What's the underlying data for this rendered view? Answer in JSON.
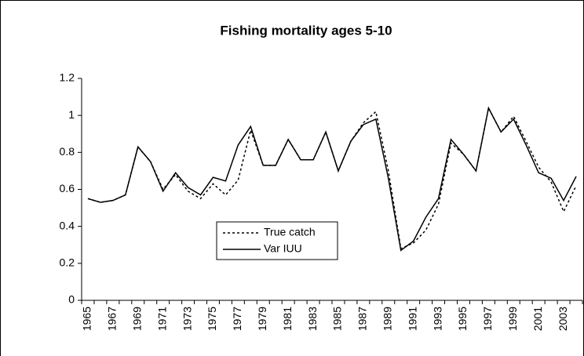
{
  "chart_data": {
    "type": "line",
    "title": "Fishing mortality ages 5-10",
    "categories": [
      "1965",
      null,
      "1967",
      null,
      "1969",
      null,
      "1971",
      null,
      "1973",
      null,
      "1975",
      null,
      "1977",
      null,
      "1979",
      null,
      "1981",
      null,
      "1983",
      null,
      "1985",
      null,
      "1987",
      null,
      "1989",
      null,
      "1991",
      null,
      "1993",
      null,
      "1995",
      null,
      "1997",
      null,
      "1999",
      null,
      "2001",
      null,
      "2003",
      null
    ],
    "series": [
      {
        "name": "True catch",
        "color": "#000000",
        "style": "dashed",
        "values": [
          0.55,
          0.53,
          0.54,
          0.57,
          0.83,
          0.75,
          0.6,
          0.68,
          0.59,
          0.55,
          0.63,
          0.57,
          0.65,
          0.92,
          0.73,
          0.73,
          0.87,
          0.76,
          0.76,
          0.91,
          0.7,
          0.86,
          0.96,
          1.02,
          0.7,
          0.28,
          0.31,
          0.38,
          0.52,
          0.85,
          0.79,
          0.7,
          1.04,
          0.91,
          0.995,
          0.86,
          0.72,
          0.64,
          0.48,
          0.62
        ]
      },
      {
        "name": "Var IUU",
        "color": "#000000",
        "style": "solid",
        "values": [
          0.55,
          0.53,
          0.54,
          0.57,
          0.83,
          0.75,
          0.59,
          0.69,
          0.61,
          0.57,
          0.665,
          0.645,
          0.84,
          0.94,
          0.73,
          0.73,
          0.87,
          0.76,
          0.76,
          0.91,
          0.7,
          0.86,
          0.95,
          0.98,
          0.66,
          0.27,
          0.32,
          0.45,
          0.55,
          0.87,
          0.79,
          0.7,
          1.04,
          0.91,
          0.98,
          0.84,
          0.69,
          0.66,
          0.54,
          0.67
        ]
      }
    ],
    "ylim": [
      0,
      1.2
    ],
    "yticks": [
      0,
      0.2,
      0.4,
      0.6,
      0.8,
      1,
      1.2
    ],
    "grid": false
  }
}
